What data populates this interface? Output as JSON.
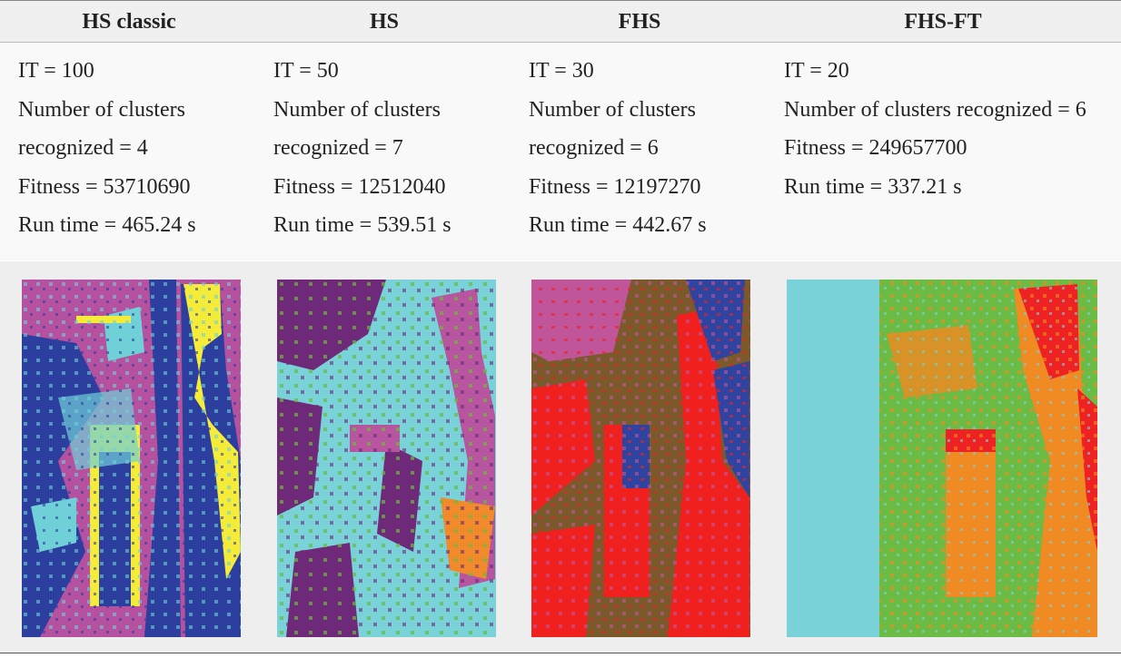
{
  "table": {
    "headers": [
      "HS classic",
      "HS",
      "FHS",
      "FHS-FT"
    ],
    "rows": [
      [
        [
          "IT = 100",
          "Number of clusters recognized = 4",
          "Fitness = 53710690",
          "Run time = 465.24 s"
        ],
        [
          "IT = 50",
          "Number of clusters recognized = 7",
          "Fitness = 12512040",
          "Run time = 539.51 s"
        ],
        [
          "IT = 30",
          "Number of clusters recognized = 6",
          "Fitness = 12197270",
          "Run time = 442.67 s"
        ],
        [
          "IT = 20",
          "Number of clusters recognized = 6",
          "Fitness = 249657700",
          "Run time = 337.21 s"
        ]
      ]
    ]
  }
}
